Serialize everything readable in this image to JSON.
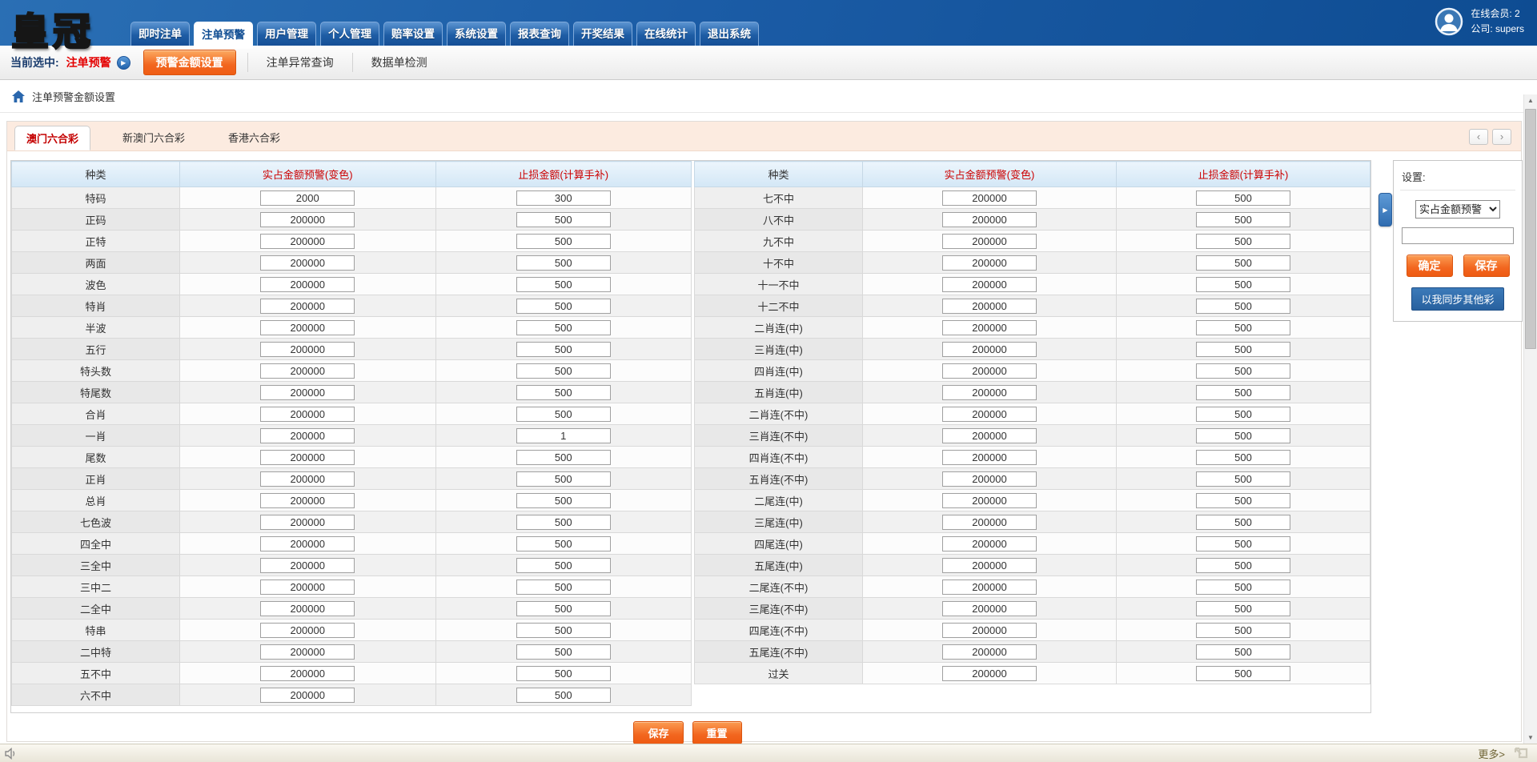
{
  "header": {
    "logo": "皇冠",
    "nav_items": [
      {
        "label": "即时注单",
        "active": false
      },
      {
        "label": "注单预警",
        "active": true
      },
      {
        "label": "用户管理",
        "active": false
      },
      {
        "label": "个人管理",
        "active": false
      },
      {
        "label": "赔率设置",
        "active": false
      },
      {
        "label": "系统设置",
        "active": false
      },
      {
        "label": "报表查询",
        "active": false
      },
      {
        "label": "开奖结果",
        "active": false
      },
      {
        "label": "在线统计",
        "active": false
      },
      {
        "label": "退出系统",
        "active": false
      }
    ],
    "user": {
      "online": "在线会员: 2",
      "company": "公司: supers"
    }
  },
  "subnav": {
    "current_label": "当前选中:",
    "current_value": "注单预警",
    "items": [
      {
        "label": "预警金额设置",
        "active": true
      },
      {
        "label": "注单异常查询",
        "active": false
      },
      {
        "label": "数据单检测",
        "active": false
      }
    ]
  },
  "breadcrumb": {
    "title": "注单预警金额设置"
  },
  "lottery_tabs": [
    {
      "label": "澳门六合彩",
      "active": true
    },
    {
      "label": "新澳门六合彩",
      "active": false
    },
    {
      "label": "香港六合彩",
      "active": false
    }
  ],
  "tables": {
    "headers": [
      "种类",
      "实占金额预警(变色)",
      "止损金额(计算手补)"
    ],
    "left_rows": [
      [
        "特码",
        "2000",
        "300"
      ],
      [
        "正码",
        "200000",
        "500"
      ],
      [
        "正特",
        "200000",
        "500"
      ],
      [
        "两面",
        "200000",
        "500"
      ],
      [
        "波色",
        "200000",
        "500"
      ],
      [
        "特肖",
        "200000",
        "500"
      ],
      [
        "半波",
        "200000",
        "500"
      ],
      [
        "五行",
        "200000",
        "500"
      ],
      [
        "特头数",
        "200000",
        "500"
      ],
      [
        "特尾数",
        "200000",
        "500"
      ],
      [
        "合肖",
        "200000",
        "500"
      ],
      [
        "一肖",
        "200000",
        "1"
      ],
      [
        "尾数",
        "200000",
        "500"
      ],
      [
        "正肖",
        "200000",
        "500"
      ],
      [
        "总肖",
        "200000",
        "500"
      ],
      [
        "七色波",
        "200000",
        "500"
      ],
      [
        "四全中",
        "200000",
        "500"
      ],
      [
        "三全中",
        "200000",
        "500"
      ],
      [
        "三中二",
        "200000",
        "500"
      ],
      [
        "二全中",
        "200000",
        "500"
      ],
      [
        "特串",
        "200000",
        "500"
      ],
      [
        "二中特",
        "200000",
        "500"
      ],
      [
        "五不中",
        "200000",
        "500"
      ],
      [
        "六不中",
        "200000",
        "500"
      ]
    ],
    "right_rows": [
      [
        "七不中",
        "200000",
        "500"
      ],
      [
        "八不中",
        "200000",
        "500"
      ],
      [
        "九不中",
        "200000",
        "500"
      ],
      [
        "十不中",
        "200000",
        "500"
      ],
      [
        "十一不中",
        "200000",
        "500"
      ],
      [
        "十二不中",
        "200000",
        "500"
      ],
      [
        "二肖连(中)",
        "200000",
        "500"
      ],
      [
        "三肖连(中)",
        "200000",
        "500"
      ],
      [
        "四肖连(中)",
        "200000",
        "500"
      ],
      [
        "五肖连(中)",
        "200000",
        "500"
      ],
      [
        "二肖连(不中)",
        "200000",
        "500"
      ],
      [
        "三肖连(不中)",
        "200000",
        "500"
      ],
      [
        "四肖连(不中)",
        "200000",
        "500"
      ],
      [
        "五肖连(不中)",
        "200000",
        "500"
      ],
      [
        "二尾连(中)",
        "200000",
        "500"
      ],
      [
        "三尾连(中)",
        "200000",
        "500"
      ],
      [
        "四尾连(中)",
        "200000",
        "500"
      ],
      [
        "五尾连(中)",
        "200000",
        "500"
      ],
      [
        "二尾连(不中)",
        "200000",
        "500"
      ],
      [
        "三尾连(不中)",
        "200000",
        "500"
      ],
      [
        "四尾连(不中)",
        "200000",
        "500"
      ],
      [
        "五尾连(不中)",
        "200000",
        "500"
      ],
      [
        "过关",
        "200000",
        "500"
      ]
    ]
  },
  "settings_panel": {
    "title": "设置:",
    "type_options": [
      "实占金额预警"
    ],
    "selected_type": "实占金额预警",
    "amount_value": "",
    "confirm_label": "确定",
    "save_label": "保存",
    "sync_label": "以我同步其他彩"
  },
  "form_actions": {
    "save_label": "保存",
    "reset_label": "重置"
  },
  "statusbar": {
    "more_label": "更多>"
  },
  "icons": {
    "subnav_arrow": "▶",
    "collapse_arrow": "▶",
    "tab_prev": "‹",
    "tab_next": "›",
    "scroll_up": "▲",
    "scroll_down": "▼",
    "avatar": "user-circle",
    "home": "house",
    "speaker": "speaker",
    "popup": "popup-window"
  },
  "colors": {
    "topbar_blue": "#0e4c92",
    "accent_orange": "#f2661f",
    "header_red": "#cc0000",
    "strip_peach": "#fcebe0",
    "panel_blue": "#2e6da4",
    "table_header_blue": "#d3e7f6"
  }
}
